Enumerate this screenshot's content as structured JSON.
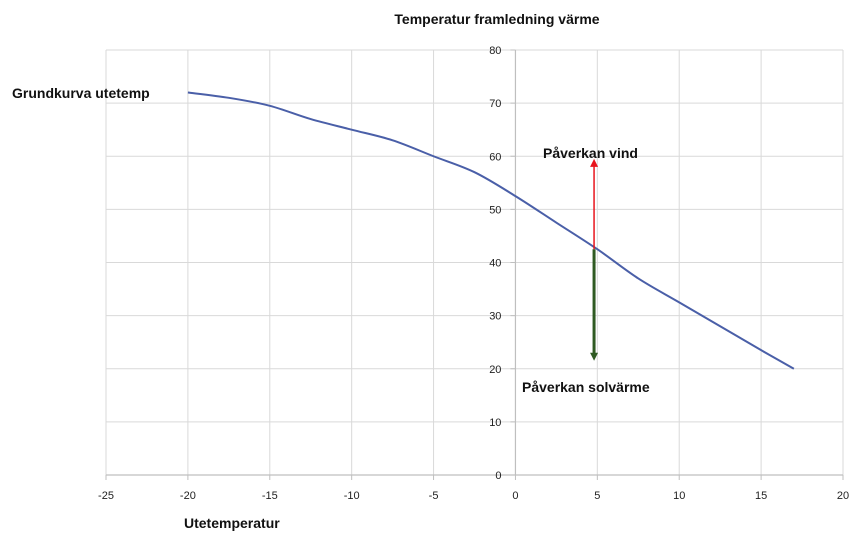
{
  "chart_data": {
    "type": "line",
    "title": "Temperatur framledning värme",
    "xlabel": "Utetemperatur",
    "ylabel": "",
    "xlim": [
      -25,
      20
    ],
    "ylim": [
      0,
      80
    ],
    "xticks": [
      -25,
      -20,
      -15,
      -10,
      -5,
      0,
      5,
      10,
      15,
      20
    ],
    "yticks": [
      0,
      10,
      20,
      30,
      40,
      50,
      60,
      70,
      80
    ],
    "grid": true,
    "series": [
      {
        "name": "Grundkurva utetemp",
        "color": "#4a5fa8",
        "x": [
          -20,
          -17.5,
          -15,
          -12.5,
          -10,
          -7.5,
          -5,
          -2.5,
          0,
          2.5,
          5,
          7.5,
          10,
          12.5,
          15,
          17
        ],
        "y": [
          72,
          71,
          69.5,
          67,
          65,
          63,
          60,
          57,
          52.5,
          47.5,
          42.5,
          37,
          32.5,
          28,
          23.5,
          20
        ]
      }
    ],
    "annotations": [
      {
        "text": "Påverkan vind",
        "x": 4.8,
        "y_from": 42.5,
        "y_to": 59.5,
        "color": "#e8141c"
      },
      {
        "text": "Påverkan solvärme",
        "x": 4.8,
        "y_from": 42.5,
        "y_to": 21.5,
        "color": "#2f5a22"
      }
    ]
  }
}
